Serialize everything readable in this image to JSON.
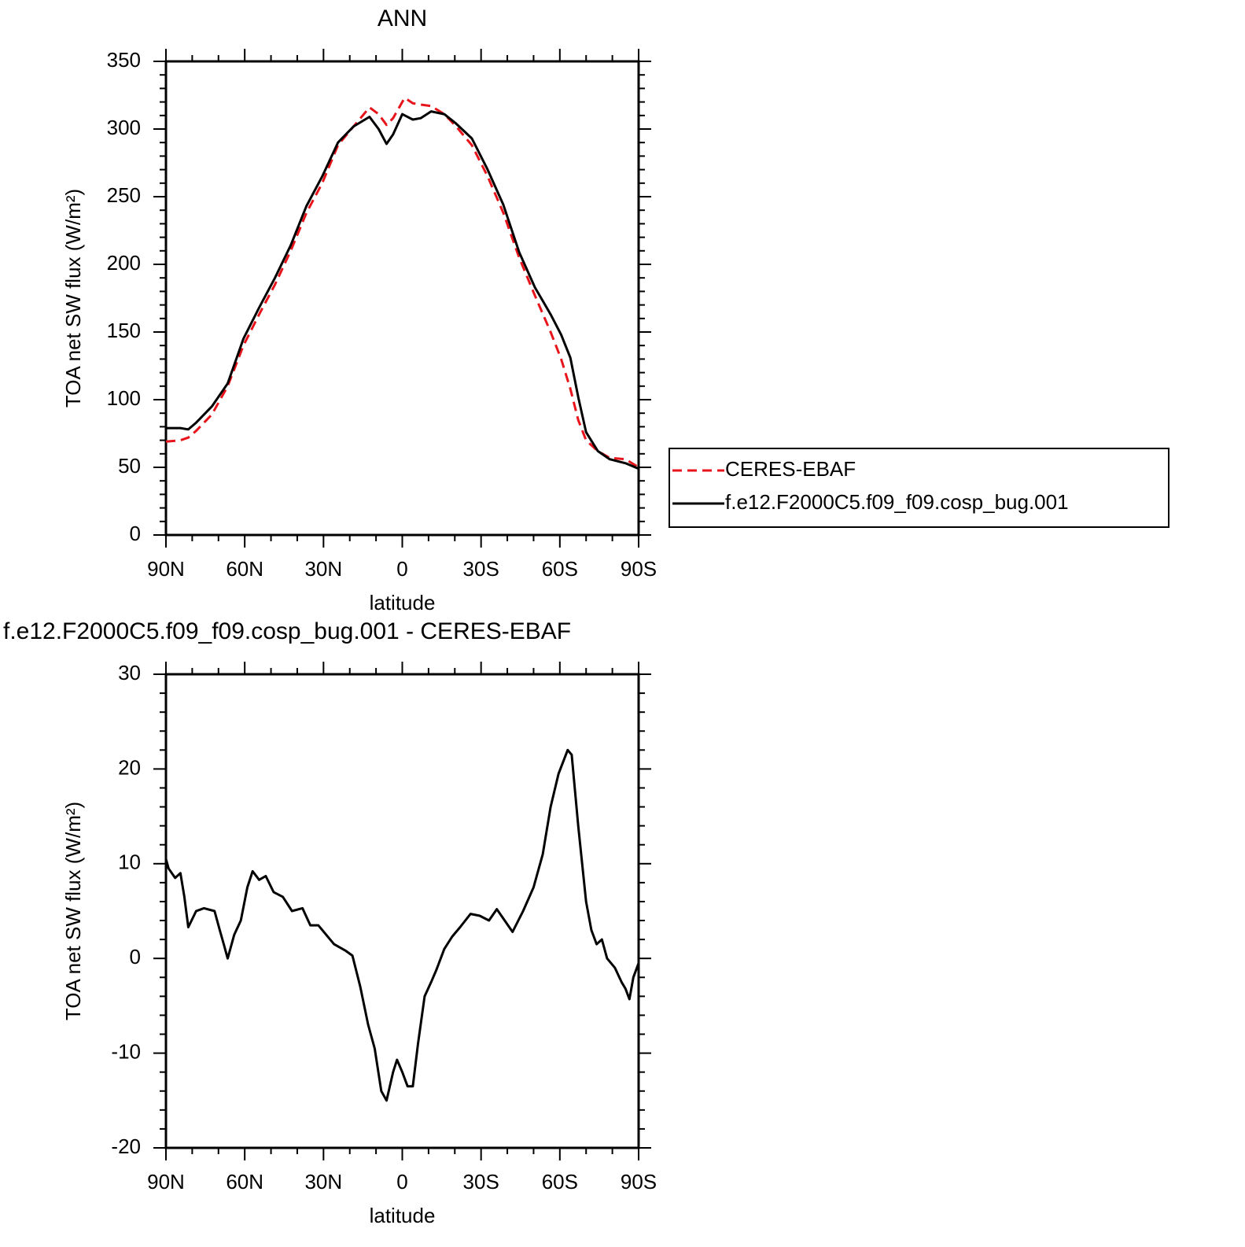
{
  "chart_data": [
    {
      "type": "line",
      "title": "ANN",
      "ylabel": "TOA net SW flux (W/m²)",
      "xlabel": "latitude",
      "x": [
        90,
        84.5,
        81.5,
        78.5,
        72.5,
        66.5,
        60.5,
        54.5,
        48.5,
        42.5,
        36.5,
        30.5,
        24.5,
        18.5,
        12.5,
        9,
        6,
        3.5,
        0,
        -1,
        -4,
        -7,
        -11,
        -16,
        -20.5,
        -26.5,
        -32.5,
        -38.5,
        -44.5,
        -50.5,
        -56.5,
        -60.5,
        -64,
        -67,
        -70,
        -74.5,
        -79,
        -85,
        -90
      ],
      "series": [
        {
          "name": "CERES-EBAF",
          "color": "#e8141b",
          "dash": "dashed",
          "values": [
            69,
            70,
            72,
            77,
            89,
            110,
            140,
            163,
            185,
            210,
            238,
            260,
            288,
            302,
            316,
            311,
            303,
            308,
            320,
            323,
            319,
            318,
            317,
            311,
            302,
            288,
            265,
            238,
            205,
            177,
            150,
            130,
            108,
            85,
            70,
            62,
            57,
            56,
            50
          ]
        },
        {
          "name": "f.e12.F2000C5.f09_f09.cosp_bug.001",
          "color": "#000000",
          "dash": "solid",
          "values": [
            79,
            79,
            78,
            83,
            95,
            112,
            145,
            168,
            190,
            214,
            243,
            265,
            290,
            302,
            309,
            300,
            289,
            296,
            311,
            310,
            307,
            308,
            313,
            311,
            304,
            293,
            270,
            244,
            209,
            183,
            163,
            148,
            131,
            102,
            76,
            62,
            56,
            53,
            49
          ]
        }
      ],
      "xlim": [
        90,
        -90
      ],
      "xticks": [
        {
          "value": 90,
          "label": "90N"
        },
        {
          "value": 60,
          "label": "60N"
        },
        {
          "value": 30,
          "label": "30N"
        },
        0,
        {
          "value": -30,
          "label": "30S"
        },
        {
          "value": -60,
          "label": "60S"
        },
        {
          "value": -90,
          "label": "90S"
        }
      ],
      "ylim": [
        0,
        350
      ],
      "yticks": [
        0,
        50,
        100,
        150,
        200,
        250,
        300,
        350
      ],
      "minor_xticks_per_interval": 3,
      "minor_yticks_per_interval": 5,
      "legend": "right"
    },
    {
      "type": "line",
      "title": "f.e12.F2000C5.f09_f09.cosp_bug.001 - CERES-EBAF",
      "ylabel": "TOA net SW flux (W/m²)",
      "xlabel": "latitude",
      "x": [
        90,
        89,
        86.5,
        84.5,
        83,
        81.5,
        78.5,
        75.5,
        71.5,
        69.5,
        68,
        66.5,
        64,
        61.5,
        59,
        57,
        54.5,
        52,
        49,
        45.5,
        42,
        38,
        35,
        32,
        29,
        26,
        21.5,
        19,
        16,
        13,
        10.5,
        8,
        6,
        3.5,
        2,
        0,
        -2,
        -4,
        -6,
        -8.5,
        -11,
        -13,
        -16,
        -19,
        -22,
        -26,
        -29.5,
        -33,
        -36,
        -39,
        -42,
        -46,
        -50,
        -53.5,
        -56.5,
        -59.5,
        -63,
        -64.5,
        -67,
        -70,
        -72,
        -74,
        -76,
        -78,
        -81,
        -83.5,
        -85,
        -86.5,
        -88,
        -90
      ],
      "color": "#000000",
      "values": [
        10.5,
        9.5,
        8.5,
        9,
        6.5,
        3.3,
        5,
        5.3,
        5,
        3,
        1.5,
        0,
        2.5,
        4,
        7.5,
        9.2,
        8.3,
        8.7,
        7,
        6.5,
        5,
        5.3,
        3.5,
        3.5,
        2.5,
        1.5,
        0.8,
        0.3,
        -3,
        -7,
        -9.5,
        -14,
        -15,
        -12,
        -10.7,
        -12,
        -13.5,
        -13.5,
        -9,
        -4,
        -2.5,
        -1.2,
        1,
        2.3,
        3.3,
        4.7,
        4.5,
        4,
        5.2,
        4,
        2.8,
        5,
        7.5,
        11,
        16,
        19.5,
        22,
        21.5,
        14,
        6,
        3,
        1.5,
        2,
        0,
        -1,
        -2.5,
        -3.2,
        -4.3,
        -2,
        -0.5
      ],
      "xlim": [
        90,
        -90
      ],
      "xticks": [
        {
          "value": 90,
          "label": "90N"
        },
        {
          "value": 60,
          "label": "60N"
        },
        {
          "value": 30,
          "label": "30N"
        },
        0,
        {
          "value": -30,
          "label": "30S"
        },
        {
          "value": -60,
          "label": "60S"
        },
        {
          "value": -90,
          "label": "90S"
        }
      ],
      "ylim": [
        -20,
        30
      ],
      "yticks": [
        -20,
        -10,
        0,
        10,
        20,
        30
      ],
      "minor_xticks_per_interval": 3,
      "minor_yticks_per_interval": 5
    }
  ]
}
